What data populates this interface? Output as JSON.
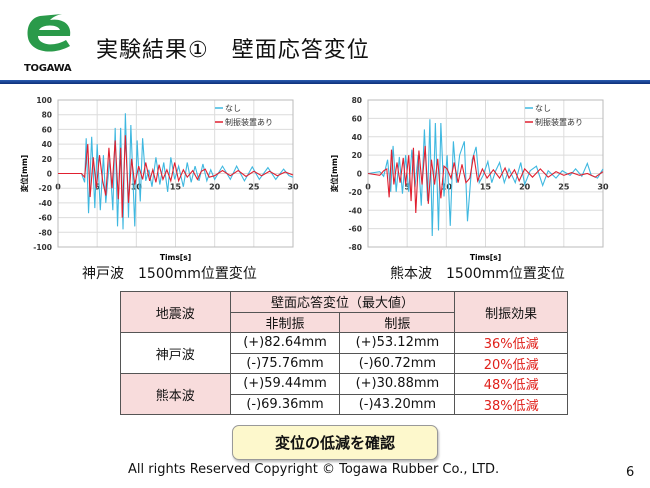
{
  "header": {
    "logo_text": "TOGAWA",
    "title": "実験結果①　壁面応答変位"
  },
  "chart_data": [
    {
      "type": "line",
      "caption": "神戸波　1500mm位置変位",
      "xlabel": "Tims[s]",
      "ylabel": "変位[mm]",
      "xlim": [
        0,
        30
      ],
      "ylim": [
        -100,
        100
      ],
      "xticks": [
        0,
        5,
        10,
        15,
        20,
        25,
        30
      ],
      "yticks": [
        100,
        80,
        60,
        40,
        20,
        0,
        -20,
        -40,
        -60,
        -80,
        -100
      ],
      "grid": true,
      "legend": "top-right",
      "series": [
        {
          "name": "なし",
          "color": "#3fb8e0",
          "points": [
            [
              0,
              0
            ],
            [
              3,
              0
            ],
            [
              3.4,
              -12
            ],
            [
              3.6,
              48
            ],
            [
              3.9,
              -54
            ],
            [
              4.3,
              50
            ],
            [
              4.7,
              -47
            ],
            [
              5,
              40
            ],
            [
              5.4,
              -50
            ],
            [
              5.8,
              25
            ],
            [
              6.1,
              -40
            ],
            [
              6.6,
              20
            ],
            [
              7,
              -50
            ],
            [
              7.3,
              62
            ],
            [
              7.6,
              -72
            ],
            [
              8,
              62
            ],
            [
              8.3,
              -76
            ],
            [
              8.6,
              82
            ],
            [
              9,
              -60
            ],
            [
              9.3,
              66
            ],
            [
              9.8,
              -72
            ],
            [
              10.1,
              45
            ],
            [
              10.5,
              -38
            ],
            [
              10.8,
              48
            ],
            [
              11.2,
              -10
            ],
            [
              11.6,
              5
            ],
            [
              12,
              -18
            ],
            [
              12.5,
              22
            ],
            [
              13,
              -15
            ],
            [
              13.5,
              15
            ],
            [
              14,
              -25
            ],
            [
              14.4,
              22
            ],
            [
              14.9,
              -8
            ],
            [
              15.4,
              10
            ],
            [
              16,
              -18
            ],
            [
              16.5,
              15
            ],
            [
              17,
              -12
            ],
            [
              17.5,
              10
            ],
            [
              18,
              -10
            ],
            [
              18.5,
              13
            ],
            [
              19,
              -10
            ],
            [
              19.5,
              5
            ],
            [
              20,
              -8
            ],
            [
              21,
              10
            ],
            [
              22,
              -8
            ],
            [
              22.8,
              10
            ],
            [
              23.8,
              -10
            ],
            [
              24.8,
              9
            ],
            [
              25.7,
              -8
            ],
            [
              26.8,
              8
            ],
            [
              27.8,
              -8
            ],
            [
              28.8,
              6
            ],
            [
              29.5,
              -3
            ],
            [
              30,
              -5
            ]
          ]
        },
        {
          "name": "制振装置あり",
          "color": "#e02030",
          "points": [
            [
              0,
              0
            ],
            [
              3,
              0
            ],
            [
              3.4,
              -5
            ],
            [
              3.8,
              40
            ],
            [
              4.1,
              -32
            ],
            [
              4.5,
              22
            ],
            [
              4.9,
              -20
            ],
            [
              5.3,
              25
            ],
            [
              5.7,
              -10
            ],
            [
              6.1,
              -30
            ],
            [
              6.5,
              35
            ],
            [
              6.9,
              -20
            ],
            [
              7.3,
              45
            ],
            [
              7.7,
              -35
            ],
            [
              8,
              35
            ],
            [
              8.2,
              -60
            ],
            [
              8.6,
              52
            ],
            [
              9,
              -40
            ],
            [
              9.4,
              20
            ],
            [
              9.8,
              -15
            ],
            [
              10.3,
              10
            ],
            [
              10.8,
              -8
            ],
            [
              11.2,
              15
            ],
            [
              11.7,
              -10
            ],
            [
              12.1,
              5
            ],
            [
              12.5,
              -12
            ],
            [
              12.9,
              12
            ],
            [
              13.4,
              -8
            ],
            [
              13.9,
              5
            ],
            [
              14.4,
              -10
            ],
            [
              14.9,
              15
            ],
            [
              15.4,
              -10
            ],
            [
              16,
              5
            ],
            [
              16.5,
              -5
            ],
            [
              17.2,
              4
            ],
            [
              17.8,
              -8
            ],
            [
              18.3,
              3
            ],
            [
              18.8,
              6
            ],
            [
              19.3,
              -5
            ],
            [
              20,
              -3
            ],
            [
              21,
              4
            ],
            [
              22,
              -3
            ],
            [
              23,
              4
            ],
            [
              24,
              -4
            ],
            [
              25,
              3
            ],
            [
              26,
              -3
            ],
            [
              27,
              3
            ],
            [
              28,
              -3
            ],
            [
              29,
              2
            ],
            [
              30,
              -2
            ]
          ]
        }
      ]
    },
    {
      "type": "line",
      "caption": "熊本波　1500mm位置変位",
      "xlabel": "Tims[s]",
      "ylabel": "変位[mm]",
      "xlim": [
        0,
        30
      ],
      "ylim": [
        -80,
        80
      ],
      "xticks": [
        0,
        5,
        10,
        15,
        20,
        25,
        30
      ],
      "yticks": [
        80,
        60,
        40,
        20,
        0,
        -20,
        -40,
        -60,
        -80
      ],
      "grid": true,
      "legend": "top-right",
      "series": [
        {
          "name": "なし",
          "color": "#3fb8e0",
          "points": [
            [
              0,
              0
            ],
            [
              1.5,
              2
            ],
            [
              2,
              -3
            ],
            [
              2.5,
              15
            ],
            [
              2.9,
              -20
            ],
            [
              3.2,
              30
            ],
            [
              3.6,
              -20
            ],
            [
              4,
              18
            ],
            [
              4.4,
              -22
            ],
            [
              4.8,
              20
            ],
            [
              5.2,
              -20
            ],
            [
              5.6,
              26
            ],
            [
              6,
              -15
            ],
            [
              6.4,
              20
            ],
            [
              6.8,
              -35
            ],
            [
              7.2,
              48
            ],
            [
              7.6,
              -30
            ],
            [
              7.9,
              59
            ],
            [
              8.2,
              -68
            ],
            [
              8.6,
              55
            ],
            [
              9,
              -62
            ],
            [
              9.3,
              55
            ],
            [
              9.7,
              -25
            ],
            [
              10.1,
              20
            ],
            [
              10.5,
              -57
            ],
            [
              10.9,
              35
            ],
            [
              11.3,
              -10
            ],
            [
              11.7,
              20
            ],
            [
              12.3,
              35
            ],
            [
              12.7,
              -52
            ],
            [
              13.3,
              15
            ],
            [
              13.8,
              29
            ],
            [
              14.2,
              -10
            ],
            [
              14.7,
              -2
            ],
            [
              15.3,
              13
            ],
            [
              15.8,
              -10
            ],
            [
              16.3,
              3
            ],
            [
              16.8,
              12
            ],
            [
              17.4,
              -10
            ],
            [
              18,
              5
            ],
            [
              18.8,
              -10
            ],
            [
              19.5,
              12
            ],
            [
              20,
              -12
            ],
            [
              20.7,
              3
            ],
            [
              21.5,
              8
            ],
            [
              22.3,
              -13
            ],
            [
              23,
              3
            ],
            [
              24,
              -5
            ],
            [
              24.8,
              3
            ],
            [
              25.8,
              -2
            ],
            [
              26.5,
              5
            ],
            [
              27.3,
              -3
            ],
            [
              28,
              11
            ],
            [
              28.5,
              -2
            ],
            [
              29.3,
              -5
            ],
            [
              30,
              5
            ]
          ]
        },
        {
          "name": "制振装置あり",
          "color": "#e02030",
          "points": [
            [
              0,
              0
            ],
            [
              1.5,
              -2
            ],
            [
              2,
              3
            ],
            [
              2.4,
              5
            ],
            [
              2.7,
              -26
            ],
            [
              3,
              26
            ],
            [
              3.3,
              -12
            ],
            [
              3.7,
              12
            ],
            [
              4.1,
              -10
            ],
            [
              4.5,
              17
            ],
            [
              4.8,
              -12
            ],
            [
              5.2,
              20
            ],
            [
              5.5,
              -30
            ],
            [
              5.8,
              28
            ],
            [
              6.1,
              -43
            ],
            [
              6.5,
              25
            ],
            [
              6.9,
              -12
            ],
            [
              7.3,
              30
            ],
            [
              7.7,
              -33
            ],
            [
              8.1,
              15
            ],
            [
              8.5,
              -12
            ],
            [
              8.9,
              16
            ],
            [
              9.3,
              -27
            ],
            [
              9.7,
              8
            ],
            [
              10.1,
              5
            ],
            [
              10.6,
              -5
            ],
            [
              11,
              12
            ],
            [
              11.5,
              -10
            ],
            [
              12,
              10
            ],
            [
              12.5,
              -10
            ],
            [
              13,
              -5
            ],
            [
              13.5,
              20
            ],
            [
              14,
              -8
            ],
            [
              14.6,
              5
            ],
            [
              15.2,
              -5
            ],
            [
              16,
              4
            ],
            [
              16.8,
              -5
            ],
            [
              17.5,
              6
            ],
            [
              18,
              -5
            ],
            [
              18.7,
              4
            ],
            [
              19.3,
              -8
            ],
            [
              20,
              5
            ],
            [
              21,
              -4
            ],
            [
              22,
              5
            ],
            [
              23,
              -4
            ],
            [
              24,
              2
            ],
            [
              25,
              -2
            ],
            [
              26,
              1
            ],
            [
              27,
              -2
            ],
            [
              28,
              0
            ],
            [
              29,
              -4
            ],
            [
              30,
              2
            ]
          ]
        }
      ]
    }
  ],
  "table": {
    "header_quake": "地震波",
    "header_resp": "壁面応答変位（最大値）",
    "header_effect": "制振効果",
    "sub_nondamped": "非制振",
    "sub_damped": "制振",
    "rows": [
      {
        "quake": "神戸波",
        "nondamped": "(+)82.64mm",
        "damped": "(+)53.12mm",
        "effect": "36%低減"
      },
      {
        "nondamped": "(-)75.76mm",
        "damped": "(-)60.72mm",
        "effect": "20%低減"
      },
      {
        "quake": "熊本波",
        "nondamped": "(+)59.44mm",
        "damped": "(+)30.88mm",
        "effect": "48%低減"
      },
      {
        "nondamped": "(-)69.36mm",
        "damped": "(-)43.20mm",
        "effect": "38%低減"
      }
    ]
  },
  "conclusion": "変位の低減を確認",
  "footer": {
    "copyright": "All  rights Reserved Copyright © Togawa Rubber Co., LTD.",
    "page": "6"
  }
}
